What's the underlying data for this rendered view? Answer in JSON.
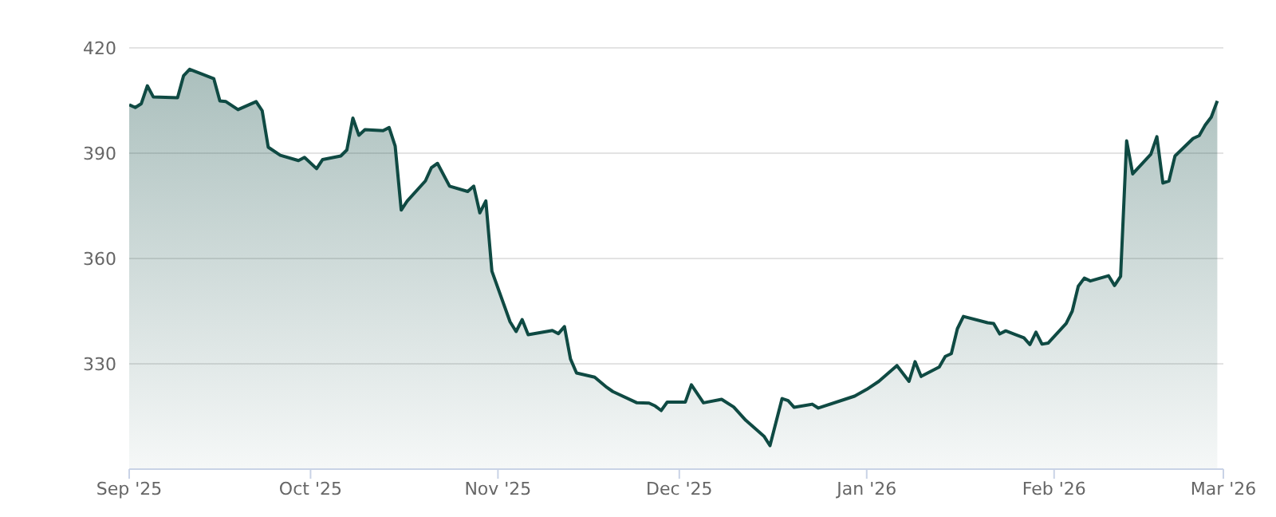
{
  "chart_data": {
    "type": "area",
    "x": [
      "2025-09-01",
      "2025-09-02",
      "2025-09-03",
      "2025-09-04",
      "2025-09-05",
      "2025-09-09",
      "2025-09-10",
      "2025-09-11",
      "2025-09-15",
      "2025-09-16",
      "2025-09-17",
      "2025-09-19",
      "2025-09-22",
      "2025-09-23",
      "2025-09-24",
      "2025-09-26",
      "2025-09-29",
      "2025-09-30",
      "2025-10-02",
      "2025-10-03",
      "2025-10-06",
      "2025-10-07",
      "2025-10-08",
      "2025-10-09",
      "2025-10-10",
      "2025-10-13",
      "2025-10-14",
      "2025-10-15",
      "2025-10-16",
      "2025-10-17",
      "2025-10-20",
      "2025-10-21",
      "2025-10-22",
      "2025-10-24",
      "2025-10-27",
      "2025-10-28",
      "2025-10-29",
      "2025-10-30",
      "2025-10-31",
      "2025-11-03",
      "2025-11-04",
      "2025-11-05",
      "2025-11-06",
      "2025-11-10",
      "2025-11-11",
      "2025-11-12",
      "2025-11-13",
      "2025-11-14",
      "2025-11-17",
      "2025-11-19",
      "2025-11-20",
      "2025-11-24",
      "2025-11-26",
      "2025-11-27",
      "2025-11-28",
      "2025-11-29",
      "2025-12-02",
      "2025-12-03",
      "2025-12-05",
      "2025-12-08",
      "2025-12-10",
      "2025-12-12",
      "2025-12-15",
      "2025-12-16",
      "2025-12-18",
      "2025-12-19",
      "2025-12-20",
      "2025-12-23",
      "2025-12-24",
      "2025-12-30",
      "2026-01-01",
      "2026-01-03",
      "2026-01-06",
      "2026-01-08",
      "2026-01-09",
      "2026-01-10",
      "2026-01-13",
      "2026-01-14",
      "2026-01-15",
      "2026-01-16",
      "2026-01-17",
      "2026-01-21",
      "2026-01-22",
      "2026-01-23",
      "2026-01-24",
      "2026-01-27",
      "2026-01-28",
      "2026-01-29",
      "2026-01-30",
      "2026-01-31",
      "2026-02-03",
      "2026-02-04",
      "2026-02-05",
      "2026-02-06",
      "2026-02-07",
      "2026-02-10",
      "2026-02-11",
      "2026-02-12",
      "2026-02-13",
      "2026-02-14",
      "2026-02-17",
      "2026-02-18",
      "2026-02-19",
      "2026-02-20",
      "2026-02-21",
      "2026-02-24",
      "2026-02-25",
      "2026-02-26",
      "2026-02-27",
      "2026-02-28"
    ],
    "values": [
      403.8,
      403.0,
      404.1,
      409.2,
      406.0,
      405.8,
      412.1,
      413.9,
      411.2,
      404.9,
      404.7,
      402.4,
      404.7,
      402.1,
      391.7,
      389.4,
      387.9,
      388.8,
      385.6,
      388.2,
      389.2,
      390.9,
      400.0,
      395.1,
      396.7,
      396.4,
      397.3,
      392.0,
      373.8,
      376.4,
      382.1,
      385.9,
      387.1,
      380.6,
      379.1,
      380.6,
      373.0,
      376.4,
      356.4,
      342.0,
      339.2,
      342.6,
      338.3,
      339.5,
      338.6,
      340.6,
      331.4,
      327.4,
      326.2,
      323.3,
      322.1,
      318.9,
      318.8,
      318.0,
      316.7,
      319.1,
      319.1,
      324.0,
      318.9,
      319.9,
      317.7,
      313.9,
      309.4,
      306.7,
      320.1,
      319.5,
      317.6,
      318.5,
      317.4,
      320.8,
      322.7,
      325.0,
      329.5,
      325.0,
      330.6,
      326.4,
      329.1,
      332.1,
      332.9,
      340.0,
      343.5,
      341.7,
      341.5,
      338.5,
      339.4,
      337.4,
      335.5,
      339.0,
      335.6,
      335.9,
      341.5,
      345.0,
      352.1,
      354.4,
      353.6,
      355.1,
      352.3,
      354.9,
      393.5,
      384.1,
      389.7,
      394.7,
      381.5,
      382.1,
      389.2,
      394.2,
      395.0,
      398.0,
      400.3,
      404.9
    ],
    "color": "#0f4a43",
    "xlim": [
      "2025-09-01",
      "2026-03-01"
    ],
    "xticks": [
      {
        "value": "2025-09-01",
        "label": "Sep '25"
      },
      {
        "value": "2025-10-01",
        "label": "Oct '25"
      },
      {
        "value": "2025-11-01",
        "label": "Nov '25"
      },
      {
        "value": "2025-12-01",
        "label": "Dec '25"
      },
      {
        "value": "2026-01-01",
        "label": "Jan '26"
      },
      {
        "value": "2026-02-01",
        "label": "Feb '26"
      },
      {
        "value": "2026-03-01",
        "label": "Mar '26"
      }
    ],
    "ylim": [
      300,
      420
    ],
    "yticks": [
      330,
      360,
      390,
      420
    ],
    "grid": "y"
  }
}
